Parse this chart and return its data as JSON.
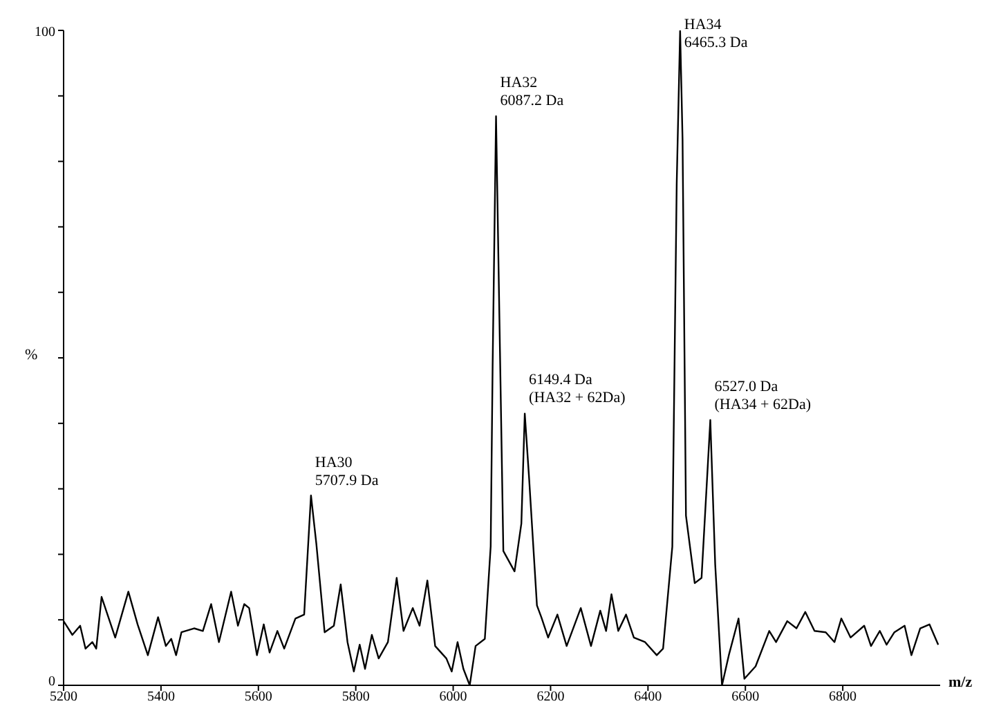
{
  "chart_data": {
    "type": "line",
    "xlabel": "m/z",
    "ylabel": "%",
    "x": [
      5200,
      5218,
      5234,
      5245,
      5259,
      5267,
      5278,
      5306,
      5333,
      5352,
      5373,
      5394,
      5410,
      5421,
      5431,
      5442,
      5468,
      5486,
      5503,
      5519,
      5544,
      5558,
      5571,
      5581,
      5597,
      5611,
      5623,
      5639,
      5653,
      5676,
      5694,
      5708,
      5719,
      5736,
      5755,
      5769,
      5783,
      5796,
      5808,
      5819,
      5833,
      5847,
      5866,
      5884,
      5898,
      5917,
      5931,
      5947,
      5963,
      5986,
      5997,
      6009,
      6021,
      6034,
      6046,
      6065,
      6077,
      6081,
      6088,
      6095,
      6103,
      6126,
      6140,
      6147,
      6156,
      6172,
      6181,
      6195,
      6214,
      6233,
      6262,
      6283,
      6302,
      6314,
      6325,
      6339,
      6355,
      6371,
      6394,
      6418,
      6431,
      6450,
      6459,
      6466,
      6471,
      6478,
      6496,
      6510,
      6528,
      6538,
      6552,
      6566,
      6586,
      6598,
      6621,
      6649,
      6663,
      6686,
      6705,
      6723,
      6742,
      6765,
      6783,
      6797,
      6816,
      6844,
      6858,
      6876,
      6890,
      6906,
      6927,
      6941,
      6959,
      6978,
      6996
    ],
    "series": [
      {
        "color": "#000000",
        "values": [
          9.8,
          7.7,
          9.1,
          5.6,
          6.6,
          5.6,
          13.5,
          7.3,
          14.3,
          9.3,
          4.6,
          10.4,
          6.0,
          7.1,
          4.6,
          8.1,
          8.7,
          8.3,
          12.4,
          6.6,
          14.3,
          9.1,
          12.4,
          11.8,
          4.6,
          9.3,
          5.0,
          8.3,
          5.6,
          10.2,
          10.8,
          29.0,
          21.6,
          8.1,
          9.1,
          15.4,
          6.6,
          2.1,
          6.2,
          2.5,
          7.7,
          4.1,
          6.6,
          16.4,
          8.3,
          11.8,
          9.1,
          16.0,
          6.0,
          4.1,
          2.1,
          6.6,
          2.5,
          0,
          6.0,
          7.1,
          21.2,
          48.8,
          86.9,
          55.8,
          20.5,
          17.4,
          24.7,
          41.5,
          31.5,
          12.2,
          10.4,
          7.3,
          10.8,
          6.0,
          11.8,
          6.0,
          11.4,
          8.3,
          13.9,
          8.3,
          10.8,
          7.3,
          6.6,
          4.6,
          5.6,
          21.2,
          76.6,
          100,
          83.4,
          25.9,
          15.6,
          16.4,
          40.5,
          18.5,
          0,
          4.6,
          10.2,
          1.0,
          2.9,
          8.3,
          6.6,
          9.8,
          8.7,
          11.2,
          8.3,
          8.1,
          6.6,
          10.2,
          7.3,
          9.1,
          6.0,
          8.3,
          6.2,
          8.1,
          9.1,
          4.6,
          8.7,
          9.3,
          6.2
        ]
      }
    ],
    "xlim": [
      5200,
      7000
    ],
    "xticks": [
      5200,
      5400,
      5600,
      5800,
      6000,
      6200,
      6400,
      6600,
      6800
    ],
    "ylim": [
      0,
      100
    ],
    "yticks": [
      0,
      {
        "value": 10,
        "label": null
      },
      {
        "value": 20,
        "label": null
      },
      {
        "value": 30,
        "label": null
      },
      {
        "value": 40,
        "label": null
      },
      {
        "value": 50,
        "label": null
      },
      {
        "value": 60,
        "label": null
      },
      {
        "value": 70,
        "label": null
      },
      {
        "value": 80,
        "label": null
      },
      {
        "value": 90,
        "label": null
      },
      100
    ],
    "marker": "none",
    "line_style": "solid",
    "grid": false,
    "legend": false,
    "annotations": [
      {
        "text": "HA30\n5707.9 Da",
        "x": 5708,
        "y": 29.0
      },
      {
        "text": "HA32\n6087.2 Da",
        "x": 6088,
        "y": 86.9
      },
      {
        "text": "6149.4 Da\n(HA32 + 62Da)",
        "x": 6147,
        "y": 41.5
      },
      {
        "text": "HA34\n6465.3 Da",
        "x": 6466,
        "y": 100
      },
      {
        "text": "6527.0 Da\n(HA34 + 62Da)",
        "x": 6528,
        "y": 40.5
      }
    ]
  }
}
